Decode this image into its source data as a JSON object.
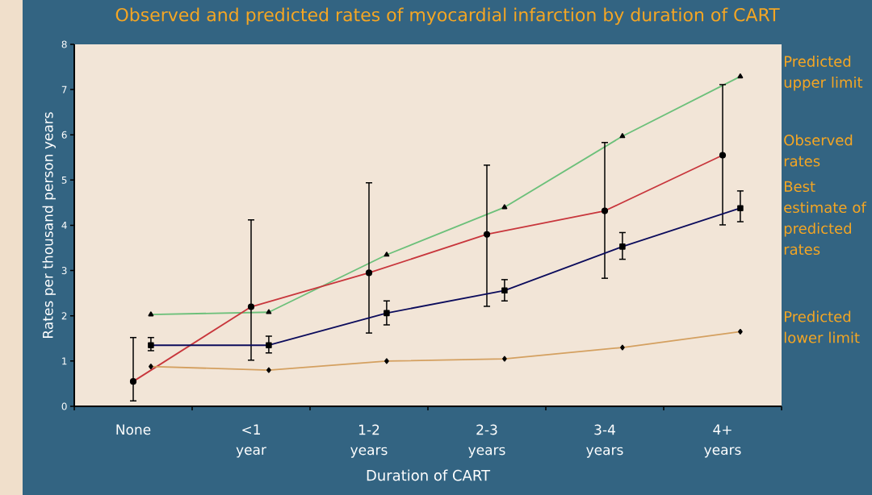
{
  "chart_data": {
    "type": "line",
    "title": "Observed and predicted rates of myocardial infarction by duration of CART",
    "xlabel": "Duration of CART",
    "ylabel": "Rates per thousand person years",
    "categories": [
      "None",
      "<1 year",
      "1-2 years",
      "2-3 years",
      "3-4 years",
      "4+ years"
    ],
    "ylim": [
      0,
      8
    ],
    "yticks": [
      0,
      1,
      2,
      3,
      4,
      5,
      6,
      7,
      8
    ],
    "series": [
      {
        "name": "Predicted upper limit",
        "color": "#6cc07a",
        "marker": "triangle",
        "values": [
          2.03,
          2.08,
          3.35,
          4.4,
          5.97,
          7.29
        ]
      },
      {
        "name": "Observed rates",
        "color": "#c8363c",
        "marker": "circle",
        "values": [
          0.55,
          2.2,
          2.95,
          3.8,
          4.32,
          5.55
        ],
        "errors": [
          [
            0.12,
            1.52
          ],
          [
            1.02,
            4.12
          ],
          [
            1.62,
            4.94
          ],
          [
            2.21,
            5.33
          ],
          [
            2.83,
            5.83
          ],
          [
            4.01,
            7.11
          ]
        ]
      },
      {
        "name": "Best estimate of predicted rates",
        "color": "#0c0c5c",
        "marker": "square",
        "values": [
          1.35,
          1.35,
          2.06,
          2.56,
          3.53,
          4.38
        ],
        "errors": [
          [
            1.23,
            1.52
          ],
          [
            1.18,
            1.55
          ],
          [
            1.8,
            2.33
          ],
          [
            2.33,
            2.8
          ],
          [
            3.25,
            3.84
          ],
          [
            4.08,
            4.76
          ]
        ]
      },
      {
        "name": "Predicted lower limit",
        "color": "#d4a060",
        "marker": "diamond",
        "values": [
          0.88,
          0.8,
          1.0,
          1.05,
          1.3,
          1.65
        ]
      }
    ]
  }
}
